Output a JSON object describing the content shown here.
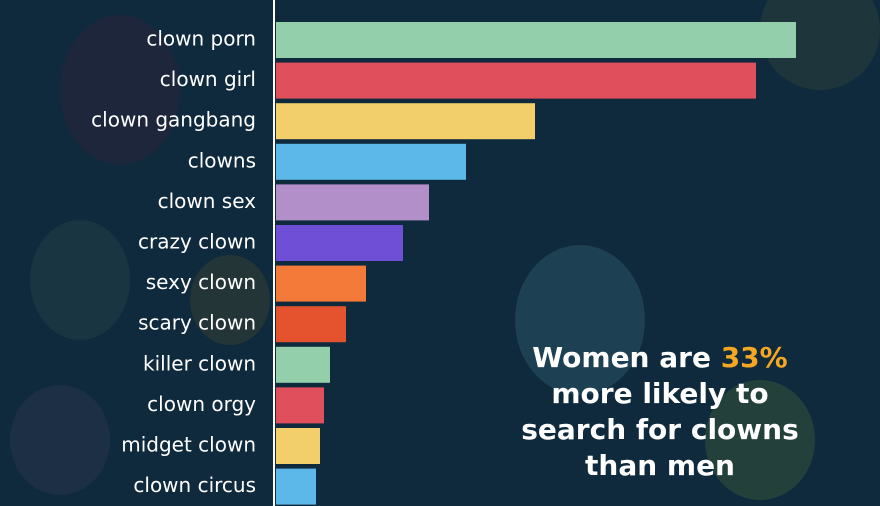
{
  "chart_data": {
    "type": "bar",
    "orientation": "horizontal",
    "categories": [
      "clown porn",
      "clown girl",
      "clown gangbang",
      "clowns",
      "clown sex",
      "crazy clown",
      "sexy clown",
      "scary clown",
      "killer clown",
      "clown orgy",
      "midget clown",
      "clown circus"
    ],
    "values": [
      520,
      480,
      259,
      190,
      153,
      127,
      90,
      70,
      54,
      48,
      44,
      40
    ],
    "colors": [
      "#93cfab",
      "#e0505c",
      "#f2cf6b",
      "#5bb8e8",
      "#b28fc9",
      "#6e4fd6",
      "#f47a3a",
      "#e4532e",
      "#93cfab",
      "#e0505c",
      "#f2cf6b",
      "#5bb8e8"
    ],
    "annotation": {
      "before": "Women are",
      "highlight": "33%",
      "after": "more likely to search for clowns than men"
    }
  }
}
